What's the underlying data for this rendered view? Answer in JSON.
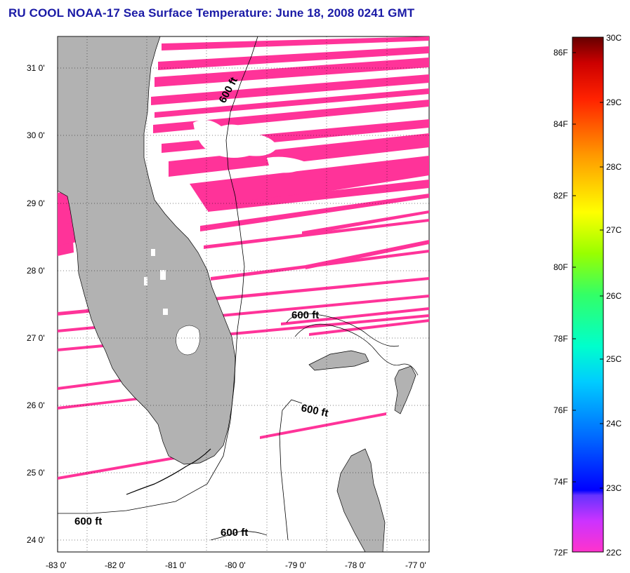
{
  "title": "RU COOL  NOAA-17  Sea Surface Temperature:  June 18, 2008 0241 GMT",
  "map": {
    "lon_range": [
      -83,
      -76.8
    ],
    "lat_range": [
      23.8,
      31.45
    ],
    "lon_ticks": [
      "-83 0'",
      "-82 0'",
      "-81 0'",
      "-80 0'",
      "-79 0'",
      "-78 0'",
      "-77 0'"
    ],
    "lat_ticks": [
      "31 0'",
      "30 0'",
      "29 0'",
      "28 0'",
      "27 0'",
      "26 0'",
      "25 0'",
      "24 0'"
    ],
    "grid": "dotted",
    "contour_labels": [
      "600 ft",
      "600 ft",
      "600 ft",
      "600 ft",
      "600 ft"
    ],
    "colors": {
      "land": "#b2b2b2",
      "sst_stripes": "#ff3399",
      "outline": "#000000",
      "ocean": "#ffffff",
      "title": "#1a1aa6"
    }
  },
  "colorbar": {
    "fahrenheit_labels": [
      "86F",
      "84F",
      "82F",
      "80F",
      "78F",
      "76F",
      "74F",
      "72F"
    ],
    "celsius_labels": [
      "30C",
      "29C",
      "28C",
      "27C",
      "26C",
      "25C",
      "24C",
      "23C",
      "22C"
    ],
    "range_c": [
      22,
      30
    ],
    "colors_bottom_to_top": [
      "#ff33cc",
      "#9933ff",
      "#0000ff",
      "#0099ff",
      "#00ffee",
      "#00ff66",
      "#99ff00",
      "#ffff00",
      "#ff9900",
      "#ff0000",
      "#660000"
    ]
  }
}
